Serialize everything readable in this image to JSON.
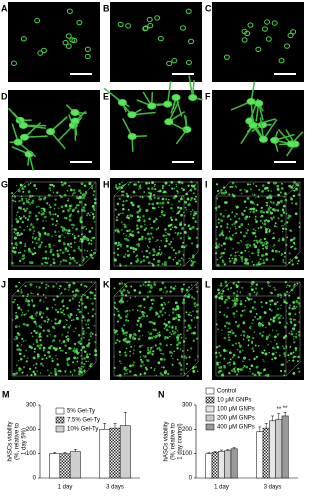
{
  "image_panels": [
    "A",
    "B",
    "C",
    "D",
    "E",
    "F",
    "G",
    "H",
    "I",
    "J",
    "K",
    "L"
  ],
  "chart_data": [
    {
      "type": "bar",
      "panel": "M",
      "ylabel": [
        "hASCs viability",
        "(%, relative to",
        "1 day 5%)"
      ],
      "categories": [
        "1 day",
        "3 days"
      ],
      "ylim": [
        0,
        300
      ],
      "yticks": [
        0,
        100,
        200,
        300
      ],
      "series": [
        {
          "name": "5% Gel-Ty",
          "color": "#ffffff",
          "values": [
            100,
            200
          ],
          "errors": [
            5,
            25
          ]
        },
        {
          "name": "7.5% Gel-Ty",
          "color": "#ffffff",
          "hatch": "checker",
          "values": [
            100,
            205
          ],
          "errors": [
            5,
            20
          ]
        },
        {
          "name": "10% Gel-Ty",
          "color": "#cfcfcf",
          "values": [
            108,
            215
          ],
          "errors": [
            10,
            55
          ]
        }
      ]
    },
    {
      "type": "bar",
      "panel": "N",
      "ylabel": [
        "hASCs viability",
        "(%, relative to",
        "1 day control)"
      ],
      "categories": [
        "1 day",
        "3 days"
      ],
      "ylim": [
        0,
        300
      ],
      "yticks": [
        0,
        100,
        200,
        300
      ],
      "annotations": [
        "**",
        "**"
      ],
      "series": [
        {
          "name": "Control",
          "color": "#ffffff",
          "values": [
            100,
            190
          ],
          "errors": [
            4,
            20
          ]
        },
        {
          "name": "10 μM GNPs",
          "color": "#ffffff",
          "hatch": "checker",
          "values": [
            105,
            205
          ],
          "errors": [
            4,
            20
          ]
        },
        {
          "name": "100 μM GNPs",
          "color": "#e6e6e6",
          "values": [
            110,
            235
          ],
          "errors": [
            5,
            20
          ]
        },
        {
          "name": "200 μM GNPs",
          "color": "#c8c8c8",
          "values": [
            112,
            240
          ],
          "errors": [
            5,
            25
          ]
        },
        {
          "name": "400 μM GNPs",
          "color": "#9a9a9a",
          "values": [
            120,
            255
          ],
          "errors": [
            5,
            15
          ]
        }
      ]
    }
  ]
}
